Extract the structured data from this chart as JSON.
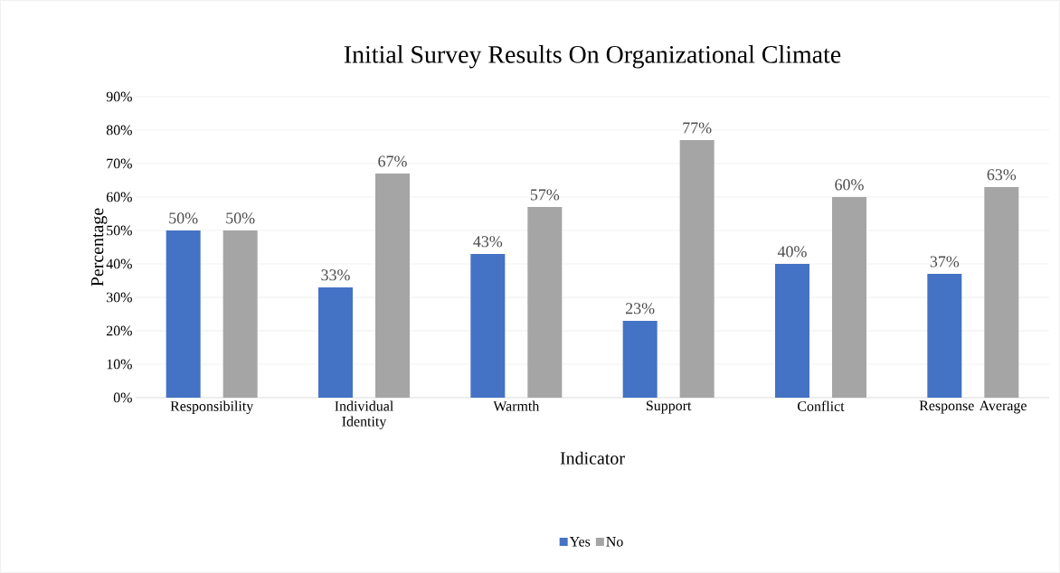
{
  "chart_data": {
    "type": "bar",
    "title": "Initial Survey Results On Organizational Climate",
    "xlabel": "Indicator",
    "ylabel": "Percentage",
    "categories": [
      "Responsibility",
      "Individual Identity",
      "Warmth",
      "Support",
      "Conflict",
      "Response Average"
    ],
    "series": [
      {
        "name": "Yes",
        "color": "#4472c4",
        "values": [
          50,
          33,
          43,
          23,
          40,
          37
        ],
        "value_labels": [
          "50%",
          "33%",
          "43%",
          "23%",
          "40%",
          "37%"
        ]
      },
      {
        "name": "No",
        "color": "#a5a5a5",
        "values": [
          50,
          67,
          57,
          77,
          60,
          63
        ],
        "value_labels": [
          "50%",
          "67%",
          "57%",
          "77%",
          "60%",
          "63%"
        ]
      }
    ],
    "ylim": [
      0,
      90
    ],
    "yticks": [
      {
        "value": 0,
        "label": "0%"
      },
      {
        "value": 10,
        "label": "10%"
      },
      {
        "value": 20,
        "label": "20%"
      },
      {
        "value": 30,
        "label": "30%"
      },
      {
        "value": 40,
        "label": "40%"
      },
      {
        "value": 50,
        "label": "50%"
      },
      {
        "value": 60,
        "label": "60%"
      },
      {
        "value": 70,
        "label": "70%"
      },
      {
        "value": 80,
        "label": "80%"
      },
      {
        "value": 90,
        "label": "90%"
      }
    ],
    "grid": "y",
    "legend": "bottom"
  }
}
